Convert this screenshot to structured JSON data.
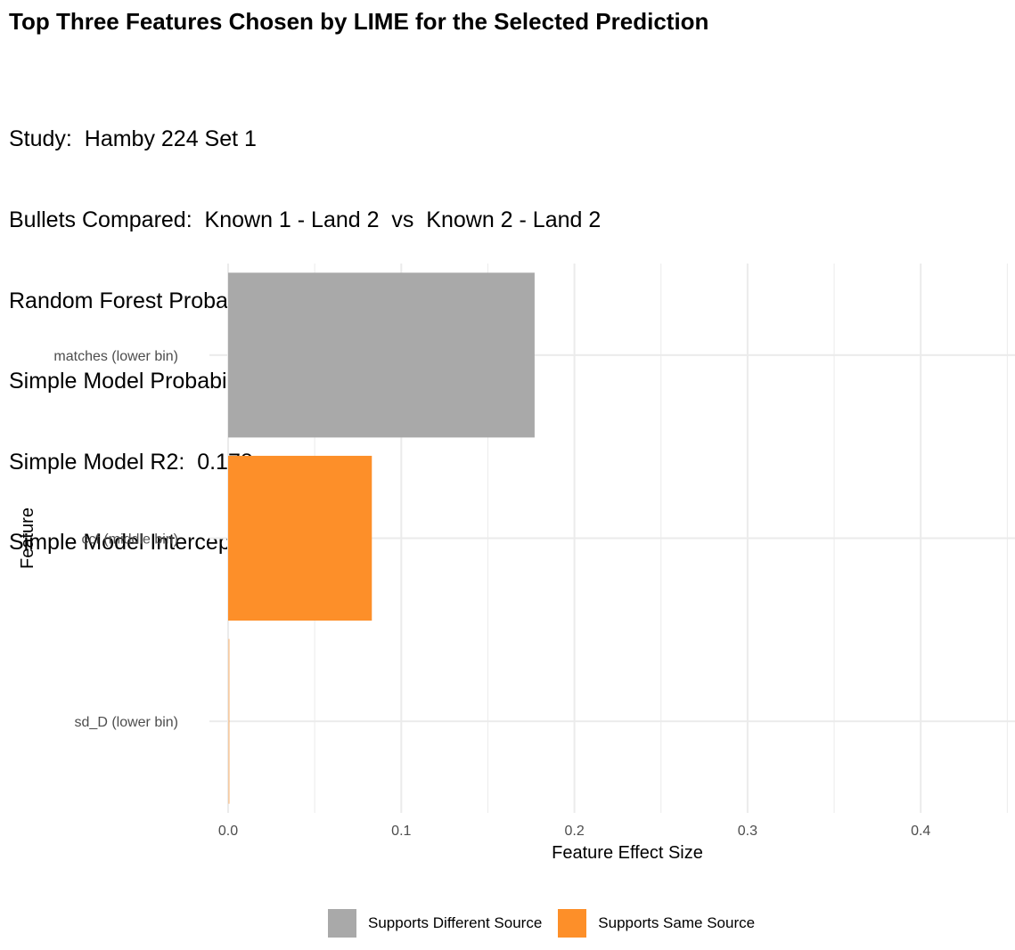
{
  "title": "Top Three Features Chosen by LIME for the Selected Prediction",
  "subtitle_lines": [
    "Study:  Hamby 224 Set 1",
    "Bullets Compared:  Known 1 - Land 2  vs  Known 2 - Land 2",
    "Random Forest Probability of a Match:  0.047",
    "Simple Model Probability of a Match:  0.33",
    "Simple Model R2:  0.178",
    "Simple Model Intercept:  0.424"
  ],
  "chart_data": {
    "type": "bar",
    "orientation": "horizontal",
    "categories": [
      "matches (lower bin)",
      "ccf (middle bin)",
      "sd_D (lower bin)"
    ],
    "values": [
      0.177,
      0.083,
      0.001
    ],
    "bar_groups": [
      "Supports Different Source",
      "Supports Same Source",
      "Supports Same Source"
    ],
    "xlabel": "Feature Effect Size",
    "ylabel": "Feature",
    "xlim": [
      0,
      0.45
    ],
    "xticks": [
      0.0,
      0.1,
      0.2,
      0.3,
      0.4
    ],
    "xtick_labels": [
      "0.0",
      "0.1",
      "0.2",
      "0.3",
      "0.4"
    ],
    "grid": true,
    "legend_position": "bottom",
    "legend": [
      {
        "label": "Supports Different Source",
        "color": "#a9a9a9"
      },
      {
        "label": "Supports Same Source",
        "color": "#fd8f29"
      }
    ]
  },
  "colors": {
    "grid": "#ebebeb",
    "different_source": "#a9a9a9",
    "same_source": "#fd8f29",
    "tick_text": "#4d4d4d"
  }
}
